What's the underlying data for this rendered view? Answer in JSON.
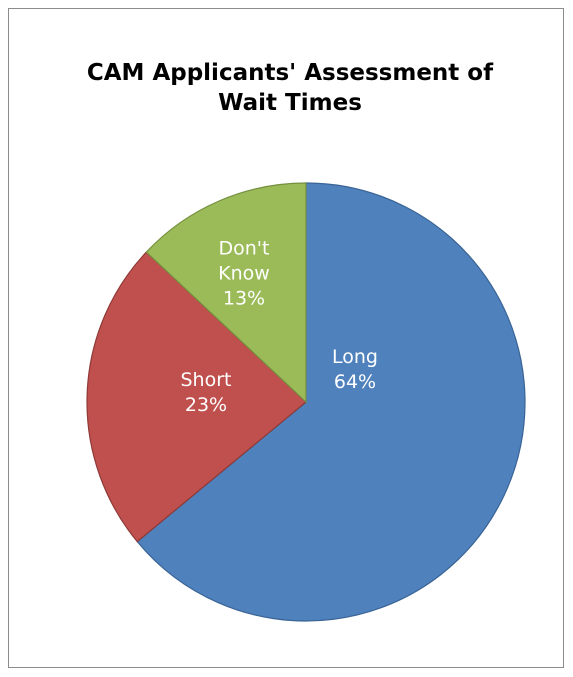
{
  "chart_data": {
    "type": "pie",
    "title": "CAM Applicants' Assessment of Wait Times",
    "categories": [
      "Long",
      "Short",
      "Don't Know"
    ],
    "values": [
      64,
      23,
      13
    ],
    "value_labels": [
      "64%",
      "23%",
      "13%"
    ],
    "colors": [
      "#4f81bd",
      "#c0504d",
      "#9bbb59"
    ]
  }
}
